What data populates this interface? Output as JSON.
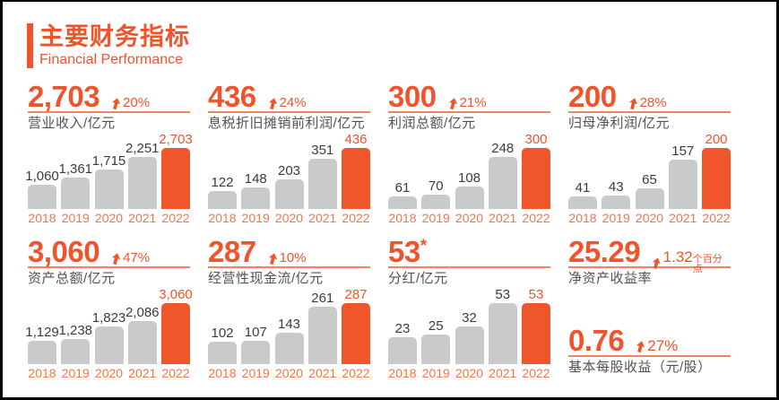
{
  "header": {
    "title": "主要财务指标",
    "subtitle": "Financial Performance"
  },
  "colors": {
    "accent": "#F0542C",
    "underline": "#F2845C",
    "bar_gray": "#C9CACA",
    "bar_highlight": "#F0562C",
    "value_label": "#3E3A39",
    "year_label": "#F0764B",
    "sublabel_gray": "#55514F"
  },
  "years": [
    "2018",
    "2019",
    "2020",
    "2021",
    "2022"
  ],
  "panels": [
    {
      "headline": "2,703",
      "suffix": "",
      "change": "20%",
      "change_suffix": "",
      "label": "营业收入/亿元"
    },
    {
      "headline": "436",
      "suffix": "",
      "change": "24%",
      "change_suffix": "",
      "label": "息税折旧摊销前利润/亿元"
    },
    {
      "headline": "300",
      "suffix": "",
      "change": "21%",
      "change_suffix": "",
      "label": "利润总额/亿元"
    },
    {
      "headline": "200",
      "suffix": "",
      "change": "28%",
      "change_suffix": "",
      "label": "归母净利润/亿元"
    },
    {
      "headline": "3,060",
      "suffix": "",
      "change": "47%",
      "change_suffix": "",
      "label": "资产总额/亿元"
    },
    {
      "headline": "287",
      "suffix": "",
      "change": "10%",
      "change_suffix": "",
      "label": "经营性现金流/亿元"
    },
    {
      "headline": "53",
      "suffix": "*",
      "change": "",
      "change_suffix": "",
      "label": "分红/亿元"
    }
  ],
  "stats": [
    {
      "headline": "25.29",
      "change": "1.32",
      "change_suffix": "个百分点",
      "label": "净资产收益率"
    },
    {
      "headline": "0.76",
      "change": "27%",
      "change_suffix": "",
      "label": "基本每股收益（元/股）"
    }
  ],
  "chart_data": [
    {
      "type": "bar",
      "title": "营业收入/亿元",
      "xlabel": "",
      "ylabel": "",
      "categories": [
        "2018",
        "2019",
        "2020",
        "2021",
        "2022"
      ],
      "values": [
        1060,
        1361,
        1715,
        2251,
        2703
      ],
      "display_values": [
        "1,060",
        "1,361",
        "1,715",
        "2,251",
        "2,703"
      ],
      "highlight_index": 4,
      "ylim": [
        0,
        2703
      ],
      "grid": false,
      "legend": "none"
    },
    {
      "type": "bar",
      "title": "息税折旧摊销前利润/亿元",
      "xlabel": "",
      "ylabel": "",
      "categories": [
        "2018",
        "2019",
        "2020",
        "2021",
        "2022"
      ],
      "values": [
        122,
        148,
        203,
        351,
        436
      ],
      "display_values": [
        "122",
        "148",
        "203",
        "351",
        "436"
      ],
      "highlight_index": 4,
      "ylim": [
        0,
        436
      ],
      "grid": false,
      "legend": "none"
    },
    {
      "type": "bar",
      "title": "利润总额/亿元",
      "xlabel": "",
      "ylabel": "",
      "categories": [
        "2018",
        "2019",
        "2020",
        "2021",
        "2022"
      ],
      "values": [
        61,
        70,
        108,
        248,
        300
      ],
      "display_values": [
        "61",
        "70",
        "108",
        "248",
        "300"
      ],
      "highlight_index": 4,
      "ylim": [
        0,
        300
      ],
      "grid": false,
      "legend": "none"
    },
    {
      "type": "bar",
      "title": "归母净利润/亿元",
      "xlabel": "",
      "ylabel": "",
      "categories": [
        "2018",
        "2019",
        "2020",
        "2021",
        "2022"
      ],
      "values": [
        41,
        43,
        65,
        157,
        200
      ],
      "display_values": [
        "41",
        "43",
        "65",
        "157",
        "200"
      ],
      "highlight_index": 4,
      "ylim": [
        0,
        200
      ],
      "grid": false,
      "legend": "none"
    },
    {
      "type": "bar",
      "title": "资产总额/亿元",
      "xlabel": "",
      "ylabel": "",
      "categories": [
        "2018",
        "2019",
        "2020",
        "2021",
        "2022"
      ],
      "values": [
        1129,
        1238,
        1823,
        2086,
        3060
      ],
      "display_values": [
        "1,129",
        "1,238",
        "1,823",
        "2,086",
        "3,060"
      ],
      "highlight_index": 4,
      "ylim": [
        0,
        3060
      ],
      "grid": false,
      "legend": "none"
    },
    {
      "type": "bar",
      "title": "经营性现金流/亿元",
      "xlabel": "",
      "ylabel": "",
      "categories": [
        "2018",
        "2019",
        "2020",
        "2021",
        "2022"
      ],
      "values": [
        102,
        107,
        143,
        261,
        287
      ],
      "display_values": [
        "102",
        "107",
        "143",
        "261",
        "287"
      ],
      "highlight_index": 4,
      "ylim": [
        0,
        287
      ],
      "grid": false,
      "legend": "none"
    },
    {
      "type": "bar",
      "title": "分红/亿元",
      "xlabel": "",
      "ylabel": "",
      "categories": [
        "2018",
        "2019",
        "2020",
        "2021",
        "2022"
      ],
      "values": [
        23,
        25,
        32,
        53,
        53
      ],
      "display_values": [
        "23",
        "25",
        "32",
        "53",
        "53"
      ],
      "highlight_index": 4,
      "ylim": [
        0,
        53
      ],
      "grid": false,
      "legend": "none"
    }
  ]
}
